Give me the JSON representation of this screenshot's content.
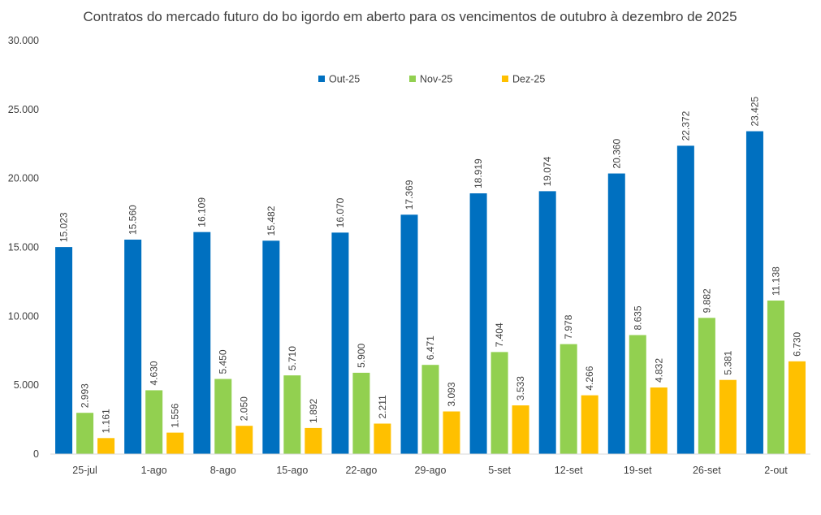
{
  "chart_data": {
    "type": "bar",
    "title": "Contratos do mercado futuro do bo igordo em aberto para os vencimentos de outubro à dezembro de 2025",
    "xlabel": "",
    "ylabel": "",
    "ylim": [
      0,
      30000
    ],
    "yticks": [
      0,
      5000,
      10000,
      15000,
      20000,
      25000,
      30000
    ],
    "ytick_labels": [
      "0",
      "5.000",
      "10.000",
      "15.000",
      "20.000",
      "25.000",
      "30.000"
    ],
    "grid": false,
    "legend": "top-center",
    "categories": [
      "25-jul",
      "1-ago",
      "8-ago",
      "15-ago",
      "22-ago",
      "29-ago",
      "5-set",
      "12-set",
      "19-set",
      "26-set",
      "2-out"
    ],
    "series": [
      {
        "name": "Out-25",
        "color": "#0070C0",
        "values": [
          15023,
          15560,
          16109,
          15482,
          16070,
          17369,
          18919,
          19074,
          20360,
          22372,
          23425
        ],
        "labels": [
          "15.023",
          "15.560",
          "16.109",
          "15.482",
          "16.070",
          "17.369",
          "18.919",
          "19.074",
          "20.360",
          "22.372",
          "23.425"
        ]
      },
      {
        "name": "Nov-25",
        "color": "#92D050",
        "values": [
          2993,
          4630,
          5450,
          5710,
          5900,
          6471,
          7404,
          7978,
          8635,
          9882,
          11138
        ],
        "labels": [
          "2.993",
          "4.630",
          "5.450",
          "5.710",
          "5.900",
          "6.471",
          "7.404",
          "7.978",
          "8.635",
          "9.882",
          "11.138"
        ]
      },
      {
        "name": "Dez-25",
        "color": "#FFC000",
        "values": [
          1161,
          1556,
          2050,
          1892,
          2211,
          3093,
          3533,
          4266,
          4832,
          5381,
          6730
        ],
        "labels": [
          "1.161",
          "1.556",
          "2.050",
          "1.892",
          "2.211",
          "3.093",
          "3.533",
          "4.266",
          "4.832",
          "5.381",
          "6.730"
        ]
      }
    ]
  }
}
